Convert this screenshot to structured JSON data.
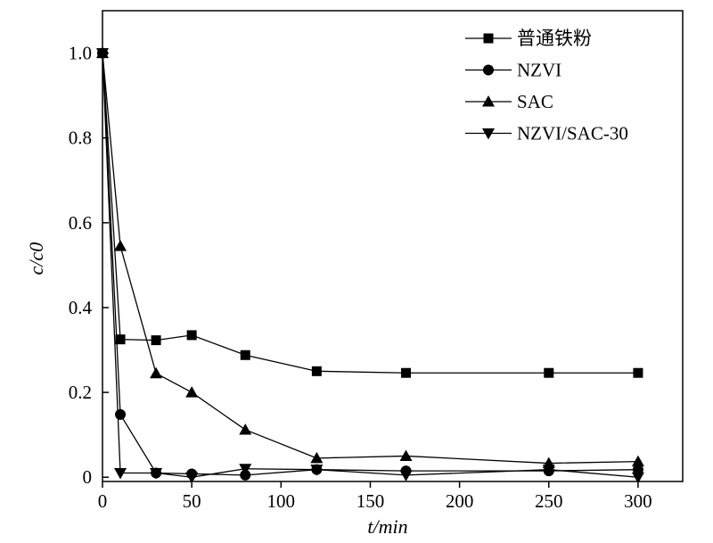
{
  "chart_data": {
    "type": "line",
    "xlabel": "t/min",
    "ylabel": "c/c0",
    "xlim": [
      0,
      325
    ],
    "ylim": [
      -0.01,
      1.1
    ],
    "xticks": [
      0,
      50,
      100,
      150,
      200,
      250,
      300
    ],
    "yticks": [
      0,
      0.2,
      0.4,
      0.6,
      0.8,
      1.0
    ],
    "ytick_labels": [
      "0",
      "0.2",
      "0.4",
      "0.6",
      "0.8",
      "1.0"
    ],
    "legend_position": "top-right",
    "grid": false,
    "series": [
      {
        "name": "普通铁粉",
        "marker": "square",
        "x": [
          0,
          10,
          30,
          50,
          80,
          120,
          170,
          250,
          300
        ],
        "y": [
          1.0,
          0.325,
          0.323,
          0.335,
          0.288,
          0.25,
          0.246,
          0.246,
          0.246
        ]
      },
      {
        "name": "NZVI",
        "marker": "circle",
        "x": [
          0,
          10,
          30,
          50,
          80,
          120,
          170,
          250,
          300
        ],
        "y": [
          1.0,
          0.148,
          0.01,
          0.008,
          0.005,
          0.018,
          0.015,
          0.015,
          0.018
        ]
      },
      {
        "name": "SAC",
        "marker": "triangle-up",
        "x": [
          0,
          10,
          30,
          50,
          80,
          120,
          170,
          250,
          300
        ],
        "y": [
          1.0,
          0.545,
          0.245,
          0.2,
          0.112,
          0.045,
          0.05,
          0.033,
          0.037
        ]
      },
      {
        "name": "NZVI/SAC-30",
        "marker": "triangle-down",
        "x": [
          0,
          10,
          30,
          50,
          80,
          120,
          170,
          250,
          300
        ],
        "y": [
          1.0,
          0.01,
          0.01,
          0.0,
          0.02,
          0.018,
          0.005,
          0.018,
          0.0
        ]
      }
    ]
  }
}
